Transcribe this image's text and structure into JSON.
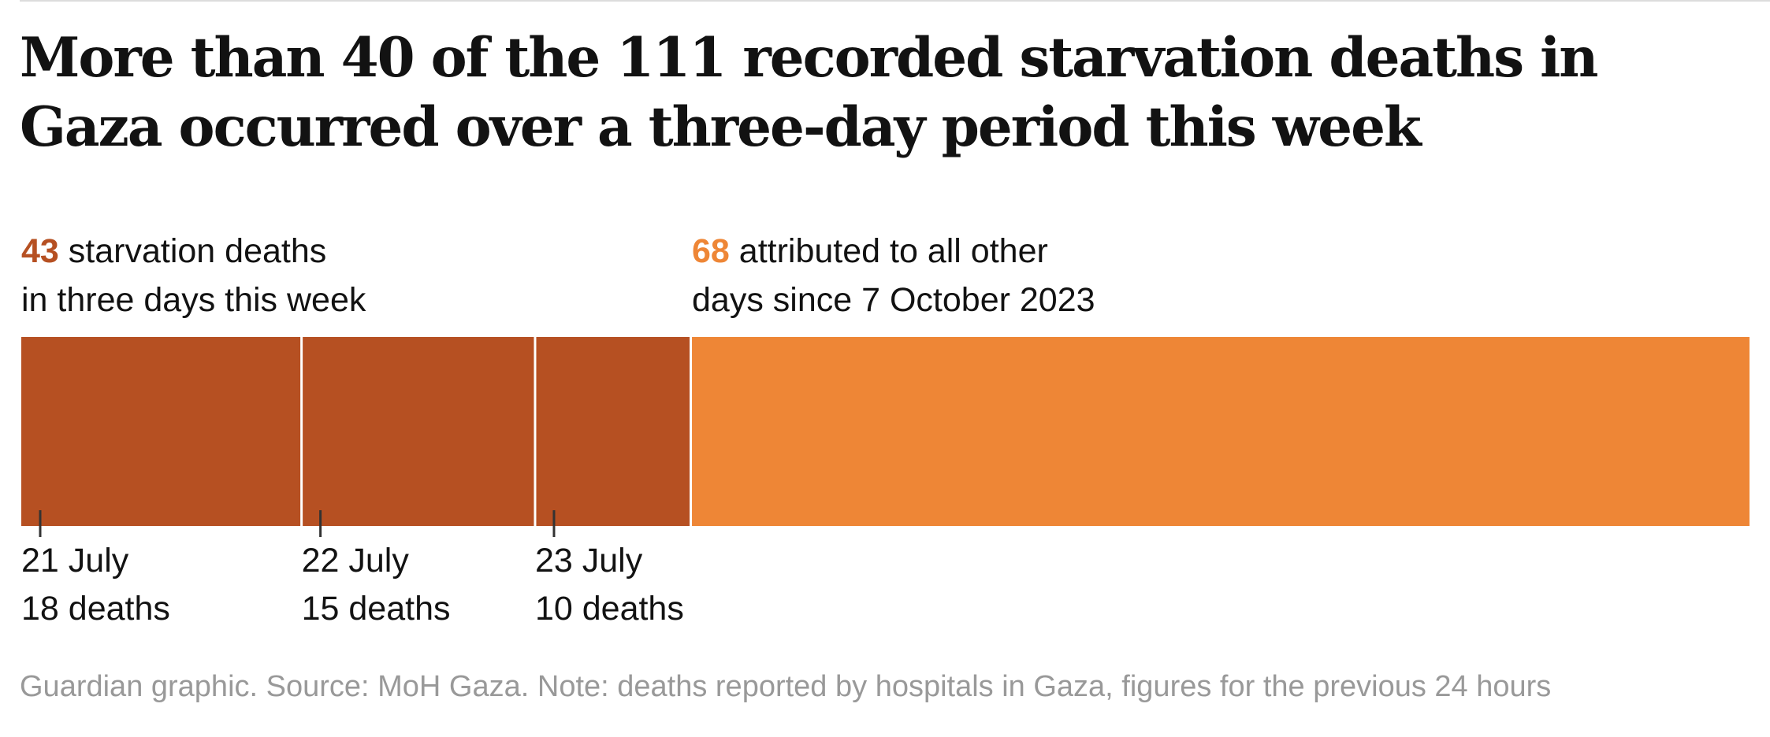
{
  "chart_data": {
    "type": "bar",
    "orientation": "horizontal-stacked",
    "title": "More than 40 of the 111 recorded starvation deaths in Gaza occurred over a three-day period this week",
    "total": 111,
    "segments": [
      {
        "label": "21 July",
        "value": 18,
        "value_label": "18 deaths",
        "color": "#b65022"
      },
      {
        "label": "22 July",
        "value": 15,
        "value_label": "15 deaths",
        "color": "#b65022"
      },
      {
        "label": "23 July",
        "value": 10,
        "value_label": "10 deaths",
        "color": "#b65022"
      },
      {
        "label": "",
        "value": 68,
        "value_label": "",
        "color": "#ee8636"
      }
    ],
    "annotations": [
      {
        "number": "43",
        "line1_rest": " starvation deaths",
        "line2": "in three days this week",
        "color": "#b65022"
      },
      {
        "number": "68",
        "line1_rest": " attributed to all other",
        "line2": "days since 7 October 2023",
        "color": "#ee8636"
      }
    ],
    "source": "Guardian graphic. Source: MoH Gaza. Note: deaths reported by hospitals in Gaza, figures for the previous 24 hours"
  }
}
